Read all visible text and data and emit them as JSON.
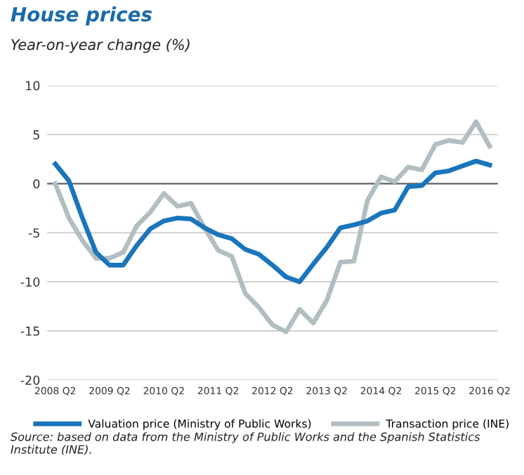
{
  "chart_data": {
    "type": "line",
    "title": "House prices",
    "subtitle": "Year-on-year change (%)",
    "categories": [
      "2008 Q2",
      null,
      null,
      null,
      "2009 Q2",
      null,
      null,
      null,
      "2010 Q2",
      null,
      null,
      null,
      "2011 Q2",
      null,
      null,
      null,
      "2012 Q2",
      null,
      null,
      null,
      "2013 Q2",
      null,
      null,
      null,
      "2014 Q2",
      null,
      null,
      null,
      "2015 Q2",
      null,
      null,
      null,
      "2016 Q2"
    ],
    "series": [
      {
        "name": "Valuation price (Ministry of Public Works)",
        "color": "#1b75bb",
        "values": [
          2.0,
          0.3,
          -3.5,
          -7.0,
          -8.3,
          -8.3,
          -6.3,
          -4.6,
          -3.8,
          -3.5,
          -3.6,
          -4.5,
          -5.2,
          -5.6,
          -6.7,
          -7.2,
          -8.3,
          -9.5,
          -10.0,
          -8.2,
          -6.5,
          -4.5,
          -4.2,
          -3.8,
          -3.0,
          -2.7,
          -0.3,
          -0.2,
          1.1,
          1.3,
          1.8,
          2.3,
          1.9
        ]
      },
      {
        "name": "Transaction price (INE)",
        "color": "#b3bec2",
        "values": [
          0.0,
          -3.5,
          -5.8,
          -7.6,
          -7.6,
          -7.0,
          -4.3,
          -2.9,
          -1.0,
          -2.3,
          -2.0,
          -4.5,
          -6.8,
          -7.4,
          -11.2,
          -12.6,
          -14.4,
          -15.1,
          -12.8,
          -14.2,
          -11.9,
          -8.0,
          -7.9,
          -1.7,
          0.7,
          0.2,
          1.7,
          1.4,
          4.0,
          4.4,
          4.2,
          6.3,
          3.8
        ]
      }
    ],
    "ylim": [
      -20,
      10
    ],
    "yticks": [
      -20,
      -15,
      -10,
      -5,
      0,
      5,
      10
    ],
    "grid": "y",
    "legend": "bottom",
    "marker": "none",
    "line_style": "solid",
    "annotations": [
      "Source: based on data from the Ministry of Public Works and the Spanish Statistics Institute (INE)."
    ]
  }
}
